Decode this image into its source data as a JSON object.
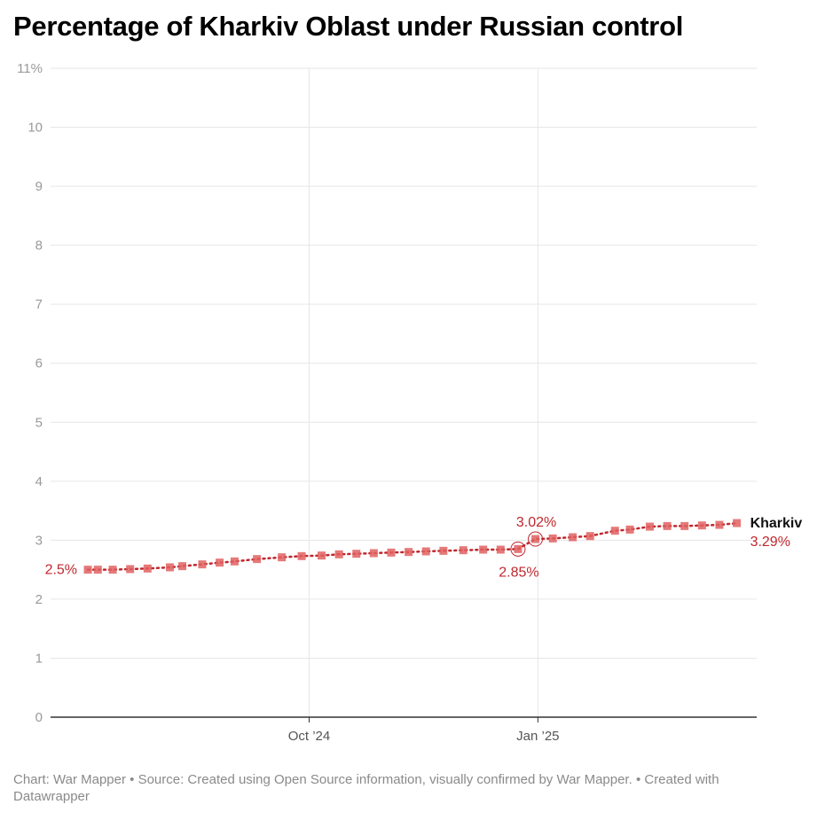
{
  "title": "Percentage of Kharkiv Oblast under Russian control",
  "footer": "Chart: War Mapper • Source: Created using Open Source information, visually confirmed by War Mapper. • Created with Datawrapper",
  "colors": {
    "line": "#c0272d",
    "marker": "#e06262",
    "grid": "#e6e6e6",
    "axis_text": "#999999",
    "baseline": "#333333"
  },
  "chart_data": {
    "type": "line",
    "title": "Percentage of Kharkiv Oblast under Russian control",
    "xlabel": "",
    "ylabel": "",
    "ylim": [
      0,
      11
    ],
    "y_ticks": [
      "0",
      "1",
      "2",
      "3",
      "4",
      "5",
      "6",
      "7",
      "8",
      "9",
      "10",
      "11%"
    ],
    "x_ticks": [
      {
        "date": "2024-10-01",
        "label": "Oct ’24"
      },
      {
        "date": "2025-01-01",
        "label": "Jan ’25"
      }
    ],
    "x_range": [
      "2024-06-19",
      "2025-03-30"
    ],
    "grid": true,
    "series": [
      {
        "name": "Kharkiv",
        "points": [
          {
            "date": "2024-07-04",
            "value": 2.5
          },
          {
            "date": "2024-07-08",
            "value": 2.5
          },
          {
            "date": "2024-07-14",
            "value": 2.5
          },
          {
            "date": "2024-07-21",
            "value": 2.51
          },
          {
            "date": "2024-07-28",
            "value": 2.52
          },
          {
            "date": "2024-08-06",
            "value": 2.54
          },
          {
            "date": "2024-08-11",
            "value": 2.56
          },
          {
            "date": "2024-08-19",
            "value": 2.59
          },
          {
            "date": "2024-08-26",
            "value": 2.62
          },
          {
            "date": "2024-09-01",
            "value": 2.64
          },
          {
            "date": "2024-09-10",
            "value": 2.68
          },
          {
            "date": "2024-09-20",
            "value": 2.71
          },
          {
            "date": "2024-09-28",
            "value": 2.73
          },
          {
            "date": "2024-10-06",
            "value": 2.74
          },
          {
            "date": "2024-10-13",
            "value": 2.76
          },
          {
            "date": "2024-10-20",
            "value": 2.77
          },
          {
            "date": "2024-10-27",
            "value": 2.78
          },
          {
            "date": "2024-11-03",
            "value": 2.79
          },
          {
            "date": "2024-11-10",
            "value": 2.8
          },
          {
            "date": "2024-11-17",
            "value": 2.81
          },
          {
            "date": "2024-11-24",
            "value": 2.82
          },
          {
            "date": "2024-12-02",
            "value": 2.83
          },
          {
            "date": "2024-12-10",
            "value": 2.84
          },
          {
            "date": "2024-12-17",
            "value": 2.84
          },
          {
            "date": "2024-12-24",
            "value": 2.85
          },
          {
            "date": "2024-12-31",
            "value": 3.02
          },
          {
            "date": "2025-01-07",
            "value": 3.03
          },
          {
            "date": "2025-01-15",
            "value": 3.05
          },
          {
            "date": "2025-01-22",
            "value": 3.07
          },
          {
            "date": "2025-02-01",
            "value": 3.16
          },
          {
            "date": "2025-02-07",
            "value": 3.18
          },
          {
            "date": "2025-02-15",
            "value": 3.23
          },
          {
            "date": "2025-02-22",
            "value": 3.24
          },
          {
            "date": "2025-03-01",
            "value": 3.24
          },
          {
            "date": "2025-03-08",
            "value": 3.25
          },
          {
            "date": "2025-03-15",
            "value": 3.26
          },
          {
            "date": "2025-03-22",
            "value": 3.29
          }
        ]
      }
    ],
    "annotations": [
      {
        "date": "2024-07-04",
        "value": 2.5,
        "label": "2.5%",
        "highlight": false
      },
      {
        "date": "2024-12-24",
        "value": 2.85,
        "label": "2.85%",
        "highlight": true
      },
      {
        "date": "2024-12-31",
        "value": 3.02,
        "label": "3.02%",
        "highlight": true
      },
      {
        "date": "2025-03-22",
        "value": 3.29,
        "label": "3.29%",
        "highlight": false
      }
    ],
    "end_label": "Kharkiv"
  }
}
